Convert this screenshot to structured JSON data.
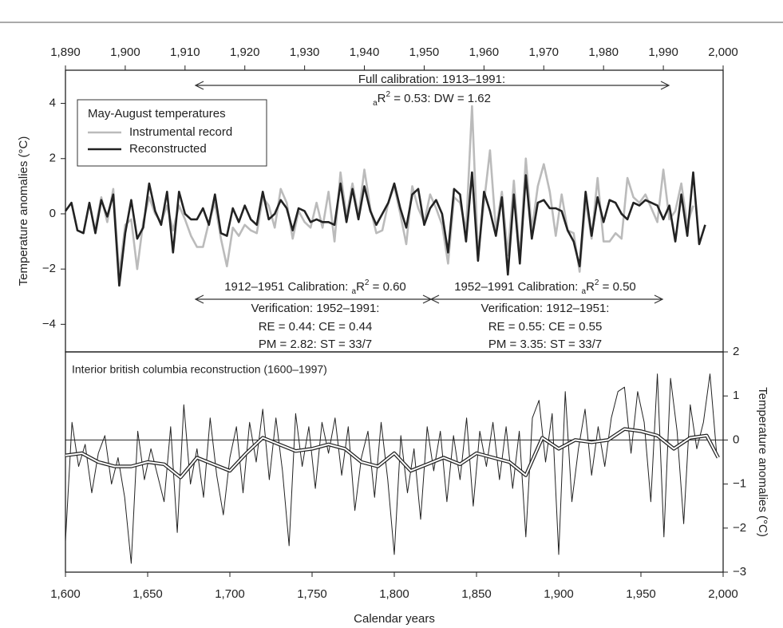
{
  "chart_data": [
    {
      "type": "line",
      "ylabel": "Temperature anomalies (°C)",
      "xlim": [
        1890,
        2000
      ],
      "ylim": [
        -5,
        5.2
      ],
      "xticks": [
        {
          "value": 1890,
          "label": "1,890"
        },
        {
          "value": 1900,
          "label": "1,900"
        },
        {
          "value": 1910,
          "label": "1,910"
        },
        {
          "value": 1920,
          "label": "1,920"
        },
        {
          "value": 1930,
          "label": "1,930"
        },
        {
          "value": 1940,
          "label": "1,940"
        },
        {
          "value": 1950,
          "label": "1,950"
        },
        {
          "value": 1960,
          "label": "1,960"
        },
        {
          "value": 1970,
          "label": "1,970"
        },
        {
          "value": 1980,
          "label": "1,980"
        },
        {
          "value": 1990,
          "label": "1,990"
        },
        {
          "value": 2000,
          "label": "2,000"
        }
      ],
      "yticks": [
        4,
        2,
        0,
        {
          "value": -2,
          "label": "−2"
        },
        {
          "value": -4,
          "label": "−4"
        }
      ],
      "legend": {
        "title": "May-August temperatures",
        "corner": "upper left"
      },
      "x": [
        1890,
        1891,
        1892,
        1893,
        1894,
        1895,
        1896,
        1897,
        1898,
        1899,
        1900,
        1901,
        1902,
        1903,
        1904,
        1905,
        1906,
        1907,
        1908,
        1909,
        1910,
        1911,
        1912,
        1913,
        1914,
        1915,
        1916,
        1917,
        1918,
        1919,
        1920,
        1921,
        1922,
        1923,
        1924,
        1925,
        1926,
        1927,
        1928,
        1929,
        1930,
        1931,
        1932,
        1933,
        1934,
        1935,
        1936,
        1937,
        1938,
        1939,
        1940,
        1941,
        1942,
        1943,
        1944,
        1945,
        1946,
        1947,
        1948,
        1949,
        1950,
        1951,
        1952,
        1953,
        1954,
        1955,
        1956,
        1957,
        1958,
        1959,
        1960,
        1961,
        1962,
        1963,
        1964,
        1965,
        1966,
        1967,
        1968,
        1969,
        1970,
        1971,
        1972,
        1973,
        1974,
        1975,
        1976,
        1977,
        1978,
        1979,
        1980,
        1981,
        1982,
        1983,
        1984,
        1985,
        1986,
        1987,
        1988,
        1989,
        1990,
        1991,
        1992,
        1993,
        1994,
        1995,
        1996,
        1997
      ],
      "series": [
        {
          "name": "Instrumental record",
          "color": "#bbbbbb",
          "values": [
            null,
            null,
            null,
            null,
            null,
            -0.5,
            0.6,
            -0.3,
            0.9,
            -2.2,
            -0.4,
            -0.2,
            -2.0,
            -0.3,
            0.6,
            0.0,
            -0.3,
            0.3,
            -0.6,
            0.3,
            -0.2,
            -0.8,
            -1.2,
            -1.2,
            -0.3,
            0.4,
            -0.9,
            -1.9,
            -0.5,
            -0.8,
            -0.4,
            -0.6,
            -0.7,
            0.6,
            0.3,
            -0.5,
            0.9,
            0.4,
            -0.9,
            0.1,
            -0.3,
            -0.5,
            0.4,
            -0.5,
            0.8,
            -1.0,
            1.5,
            -0.1,
            1.1,
            -0.1,
            1.6,
            0.2,
            -0.7,
            -0.6,
            0.4,
            1.0,
            0.0,
            -1.1,
            1.0,
            0.2,
            -0.3,
            0.7,
            0.2,
            -0.4,
            -1.8,
            0.6,
            0.4,
            -0.6,
            3.9,
            -1.5,
            0.4,
            2.3,
            -0.6,
            0.8,
            -1.5,
            1.2,
            -1.6,
            2.0,
            -0.6,
            1.0,
            1.8,
            0.8,
            -0.8,
            0.7,
            -0.6,
            -0.7,
            -2.1,
            0.5,
            -0.9,
            1.3,
            -1.0,
            -1.0,
            -0.7,
            -0.9,
            1.3,
            0.6,
            0.4,
            0.7,
            0.2,
            -0.3,
            1.6,
            -0.2,
            0.1,
            1.1,
            -0.4,
            0.3,
            null,
            null
          ]
        },
        {
          "name": "Reconstructed",
          "color": "#222222",
          "values": [
            0.1,
            0.4,
            -0.6,
            -0.7,
            0.4,
            -0.7,
            0.5,
            -0.1,
            0.7,
            -2.6,
            -0.7,
            0.5,
            -0.9,
            -0.5,
            1.1,
            0.1,
            -0.4,
            0.8,
            -1.4,
            0.8,
            0.0,
            -0.2,
            -0.2,
            0.2,
            -0.4,
            0.7,
            -0.7,
            -0.8,
            0.2,
            -0.3,
            0.3,
            -0.2,
            -0.4,
            0.8,
            -0.2,
            0.0,
            0.5,
            0.2,
            -0.6,
            0.2,
            0.1,
            -0.3,
            -0.2,
            -0.3,
            -0.3,
            -0.4,
            1.1,
            -0.3,
            0.9,
            -0.2,
            1.0,
            0.1,
            -0.4,
            0.0,
            0.4,
            1.1,
            0.2,
            -0.5,
            0.7,
            0.9,
            -0.4,
            0.2,
            0.5,
            0.0,
            -1.4,
            0.9,
            0.7,
            -1.0,
            1.5,
            -1.7,
            0.8,
            0.1,
            -0.8,
            0.6,
            -2.2,
            0.7,
            -1.8,
            1.4,
            -0.9,
            0.4,
            0.5,
            0.2,
            0.2,
            0.1,
            -0.6,
            -1.0,
            -1.9,
            0.8,
            -0.8,
            0.6,
            -0.3,
            0.5,
            0.4,
            0.0,
            -0.2,
            0.4,
            0.3,
            0.5,
            0.4,
            0.3,
            -0.2,
            0.3,
            -1.0,
            0.7,
            -0.8,
            1.5,
            -1.1,
            -0.4
          ]
        }
      ],
      "annotations": [
        "Full calibration: 1913–1991:",
        {
          "sub": "a",
          "base": "R",
          "sup": "2",
          "rest": " = 0.53: DW = 1.62"
        },
        {
          "lead": "1912–1951 Calibration: ",
          "sub": "a",
          "base": "R",
          "sup": "2",
          "rest": " = 0.60"
        },
        "Verification: 1952–1991:",
        "RE = 0.44: CE = 0.44",
        "PM = 2.82: ST = 33/7",
        {
          "lead": "1952–1991 Calibration: ",
          "sub": "a",
          "base": "R",
          "sup": "2",
          "rest": " = 0.50"
        },
        "Verification: 1912–1951:",
        "RE = 0.55: CE = 0.55",
        "PM = 3.35: ST = 33/7"
      ]
    },
    {
      "type": "line",
      "title": "Interior british columbia reconstruction (1600–1997)",
      "xlabel": "Calendar years",
      "ylabel": "Temperature anomalies (°C)",
      "xlim": [
        1600,
        2000
      ],
      "ylim": [
        -3,
        2
      ],
      "xticks": [
        {
          "value": 1600,
          "label": "1,600"
        },
        {
          "value": 1650,
          "label": "1,650"
        },
        {
          "value": 1700,
          "label": "1,700"
        },
        {
          "value": 1750,
          "label": "1,750"
        },
        {
          "value": 1800,
          "label": "1,800"
        },
        {
          "value": 1850,
          "label": "1,850"
        },
        {
          "value": 1900,
          "label": "1,900"
        },
        {
          "value": 1950,
          "label": "1,950"
        },
        {
          "value": 2000,
          "label": "2,000"
        }
      ],
      "yticks": [
        2,
        1,
        0,
        {
          "value": -1,
          "label": "−1"
        },
        {
          "value": -2,
          "label": "−2"
        },
        {
          "value": -3,
          "label": "−3"
        }
      ],
      "reference_line": 0,
      "series": [
        {
          "color": "#222222",
          "x": [
            1600,
            1604,
            1608,
            1612,
            1616,
            1620,
            1624,
            1628,
            1632,
            1636,
            1640,
            1644,
            1648,
            1652,
            1656,
            1660,
            1664,
            1668,
            1672,
            1676,
            1680,
            1684,
            1688,
            1692,
            1696,
            1700,
            1704,
            1708,
            1712,
            1716,
            1720,
            1724,
            1728,
            1732,
            1736,
            1740,
            1744,
            1748,
            1752,
            1756,
            1760,
            1764,
            1768,
            1772,
            1776,
            1780,
            1784,
            1788,
            1792,
            1796,
            1800,
            1804,
            1808,
            1812,
            1816,
            1820,
            1824,
            1828,
            1832,
            1836,
            1840,
            1844,
            1848,
            1852,
            1856,
            1860,
            1864,
            1868,
            1872,
            1876,
            1880,
            1884,
            1888,
            1892,
            1896,
            1900,
            1904,
            1908,
            1912,
            1916,
            1920,
            1924,
            1928,
            1932,
            1936,
            1940,
            1944,
            1948,
            1952,
            1956,
            1960,
            1964,
            1968,
            1972,
            1976,
            1980,
            1984,
            1988,
            1992,
            1996
          ],
          "values": [
            -2.3,
            0.4,
            -0.6,
            -0.1,
            -1.2,
            -0.3,
            0.1,
            -1.0,
            -0.4,
            -1.3,
            -2.8,
            0.2,
            -0.9,
            -0.2,
            -0.8,
            -1.4,
            0.3,
            -2.1,
            0.8,
            -1.0,
            -0.2,
            -1.3,
            0.5,
            -0.8,
            -1.7,
            -0.4,
            0.3,
            -1.2,
            0.4,
            -0.5,
            0.7,
            -0.9,
            0.5,
            -0.7,
            -2.4,
            0.6,
            -0.6,
            0.3,
            -1.1,
            0.4,
            -0.3,
            0.5,
            -0.8,
            0.3,
            -1.6,
            -0.4,
            0.2,
            -1.3,
            0.4,
            -0.9,
            -2.6,
            0.1,
            -1.2,
            -0.2,
            -1.8,
            0.3,
            -0.7,
            0.2,
            -1.4,
            0.1,
            -0.9,
            0.5,
            -1.5,
            0.2,
            -0.6,
            0.4,
            -0.9,
            0.3,
            -1.1,
            0.2,
            -2.2,
            0.5,
            0.9,
            -0.5,
            0.6,
            -2.6,
            1.1,
            -1.4,
            -0.2,
            0.7,
            -0.8,
            0.3,
            -0.6,
            0.5,
            1.1,
            1.2,
            -0.3,
            1.1,
            0.4,
            -1.4,
            1.5,
            -2.2,
            1.4,
            0.2,
            -1.9,
            0.8,
            -0.2,
            0.4,
            1.5,
            -0.3
          ]
        },
        {
          "color": "#ffffff",
          "outline": "#222222",
          "x": [
            1600,
            1610,
            1620,
            1630,
            1640,
            1650,
            1660,
            1670,
            1680,
            1690,
            1700,
            1710,
            1720,
            1730,
            1740,
            1750,
            1760,
            1770,
            1780,
            1790,
            1800,
            1810,
            1820,
            1830,
            1840,
            1850,
            1860,
            1870,
            1880,
            1890,
            1900,
            1910,
            1920,
            1930,
            1940,
            1950,
            1960,
            1970,
            1980,
            1990,
            1997
          ],
          "values": [
            -0.35,
            -0.3,
            -0.5,
            -0.6,
            -0.6,
            -0.5,
            -0.55,
            -0.85,
            -0.4,
            -0.55,
            -0.7,
            -0.3,
            0.05,
            -0.1,
            -0.25,
            -0.2,
            -0.1,
            -0.2,
            -0.5,
            -0.6,
            -0.3,
            -0.7,
            -0.55,
            -0.4,
            -0.55,
            -0.3,
            -0.4,
            -0.5,
            -0.8,
            0.05,
            -0.2,
            0.0,
            -0.05,
            0.0,
            0.25,
            0.2,
            0.1,
            -0.2,
            0.05,
            0.1,
            -0.4
          ]
        }
      ]
    }
  ]
}
